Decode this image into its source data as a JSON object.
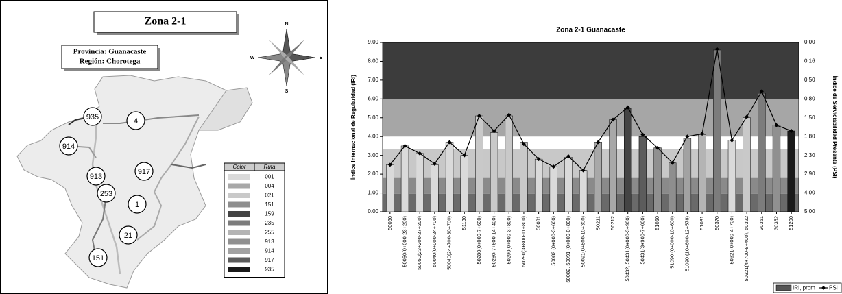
{
  "map": {
    "title": "Zona 2-1",
    "province": "Provincia: Guanacaste",
    "region": "Región: Chorotega",
    "compass": [
      "N",
      "S",
      "E",
      "W"
    ],
    "route_labels": [
      "935",
      "4",
      "914",
      "913",
      "917",
      "1",
      "253",
      "21",
      "151"
    ],
    "legend": {
      "headers": [
        "Color",
        "Ruta"
      ],
      "rows": [
        {
          "route": "001",
          "color": "#dadada"
        },
        {
          "route": "004",
          "color": "#a8a8a8"
        },
        {
          "route": "021",
          "color": "#c9c9c9"
        },
        {
          "route": "151",
          "color": "#8e8e8e"
        },
        {
          "route": "159",
          "color": "#444444"
        },
        {
          "route": "235",
          "color": "#7c7c7c"
        },
        {
          "route": "255",
          "color": "#b4b4b4"
        },
        {
          "route": "913",
          "color": "#909090"
        },
        {
          "route": "914",
          "color": "#a2a2a2"
        },
        {
          "route": "917",
          "color": "#5c5c5c"
        },
        {
          "route": "935",
          "color": "#1a1a1a"
        }
      ]
    }
  },
  "chart_data": {
    "type": "bar",
    "title": "Zona 2-1 Guanacaste",
    "y_label": "Índice Internacional de Regularidad (IRI)",
    "y2_label": "Índice de Serviciabilidad Presente (PSI)",
    "categories": [
      "50060",
      "50050(0+000-23+200)",
      "50050(23+200-27+200)",
      "50040(0+000-24+700)",
      "50040(24+700-30+700)",
      "51130",
      "50280(0+000-7+600)",
      "50280(7+600-14+400)",
      "50290(0+000-3+800)",
      "50290(3+800-11+800)",
      "50081",
      "50082 (0+000-3+600)",
      "50082, 50091 (0+000-0+800)",
      "50091(0+800-10+300)",
      "50211",
      "50212",
      "50432, 50431(0+000-3+900)",
      "50431(3+900-7+000)",
      "51060",
      "51090 (0+000-10+600)",
      "51090 (10+600-12+578)",
      "51081",
      "50370",
      "50321(0+000-4+700)",
      "50321(4+700-8+400), 50322",
      "30351",
      "30352",
      "51200"
    ],
    "series": [
      {
        "name": "IRI, prom",
        "type": "bar",
        "colors": [
          "#dadada",
          "#dadada",
          "#dadada",
          "#dadada",
          "#dadada",
          "#dadada",
          "#c9c9c9",
          "#c9c9c9",
          "#c9c9c9",
          "#c9c9c9",
          "#dadada",
          "#dadada",
          "#dadada",
          "#dadada",
          "#a8a8a8",
          "#a8a8a8",
          "#444444",
          "#5c5c5c",
          "#909090",
          "#8e8e8e",
          "#a2a2a2",
          "#b4b4b4",
          "#7c7c7c",
          "#dadada",
          "#c9c9c9",
          "#7c7c7c",
          "#909090",
          "#1a1a1a"
        ],
        "values": [
          2.5,
          3.5,
          3.1,
          2.5,
          3.7,
          3.0,
          5.1,
          4.2,
          5.1,
          3.7,
          2.8,
          2.4,
          2.9,
          2.2,
          3.7,
          4.9,
          5.5,
          4.0,
          3.4,
          2.6,
          3.9,
          4.1,
          8.6,
          3.8,
          5.0,
          6.3,
          4.6,
          4.3
        ]
      },
      {
        "name": "PSI",
        "type": "line",
        "color": "#000000",
        "values": [
          2.5,
          3.5,
          3.1,
          2.55,
          3.7,
          3.0,
          5.1,
          4.3,
          5.15,
          3.6,
          2.8,
          2.4,
          2.95,
          2.2,
          3.7,
          4.9,
          5.55,
          4.1,
          3.4,
          2.6,
          4.0,
          4.15,
          8.65,
          3.8,
          5.05,
          6.4,
          4.6,
          4.3
        ]
      }
    ],
    "bands": [
      {
        "from": 0,
        "to": 0.95,
        "color": "#6a6a6a"
      },
      {
        "from": 0.95,
        "to": 1.8,
        "color": "#8a8a8a"
      },
      {
        "from": 1.8,
        "to": 3.35,
        "color": "#c8c8c8"
      },
      {
        "from": 3.35,
        "to": 4.0,
        "color": "#ffffff"
      },
      {
        "from": 4.0,
        "to": 6.0,
        "color": "#a6a6a6"
      },
      {
        "from": 6.0,
        "to": 9.0,
        "color": "#3c3c3c"
      }
    ],
    "ylim": [
      0,
      9
    ],
    "yticks": [
      {
        "value": 0,
        "label": "0.00"
      },
      {
        "value": 1,
        "label": "1.00"
      },
      {
        "value": 2,
        "label": "2.00"
      },
      {
        "value": 3,
        "label": "3.00"
      },
      {
        "value": 4,
        "label": "4.00"
      },
      {
        "value": 5,
        "label": "5.00"
      },
      {
        "value": 6,
        "label": "6.00"
      },
      {
        "value": 7,
        "label": "7.00"
      },
      {
        "value": 8,
        "label": "8.00"
      },
      {
        "value": 9,
        "label": "9.00"
      }
    ],
    "y2_tick_labels": [
      "5,00",
      "4,00",
      "2,90",
      "2,30",
      "1,80",
      "1,50",
      "0,80",
      "0,50",
      "0,16",
      "0,00"
    ]
  }
}
